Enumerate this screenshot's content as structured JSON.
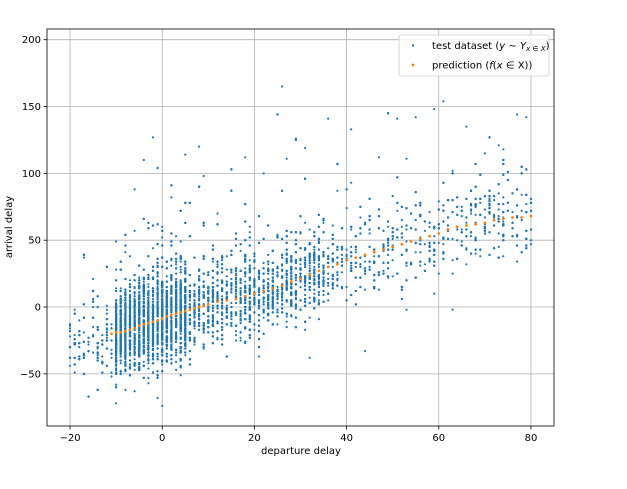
{
  "chart_data": {
    "type": "scatter",
    "xlabel": "departure delay",
    "ylabel": "arrival delay",
    "xlim": [
      -25,
      85
    ],
    "ylim": [
      -89,
      208
    ],
    "grid": true,
    "legend_placement": "top-right",
    "x_ticks": [
      -20,
      0,
      20,
      40,
      60,
      80
    ],
    "y_ticks": [
      -50,
      0,
      50,
      100,
      150,
      200
    ],
    "x_tick_labels": [
      "−20",
      "0",
      "20",
      "40",
      "60",
      "80"
    ],
    "y_tick_labels": [
      "−50",
      "0",
      "50",
      "100",
      "150",
      "200"
    ],
    "series": [
      {
        "name": "test dataset",
        "color": "#1f77b4",
        "marker": "point",
        "sample_points": [
          [
            -20,
            -18
          ],
          [
            -17,
            37
          ],
          [
            -15,
            12
          ],
          [
            -12,
            -2
          ],
          [
            -11,
            -52
          ],
          [
            -10,
            28
          ],
          [
            -8,
            -62
          ],
          [
            -6,
            88
          ],
          [
            -4,
            110
          ],
          [
            -2,
            127
          ],
          [
            -1,
            -68
          ],
          [
            0,
            60
          ],
          [
            0,
            -74
          ],
          [
            5,
            114
          ],
          [
            8,
            120
          ],
          [
            12,
            70
          ],
          [
            18,
            112
          ],
          [
            22,
            100
          ],
          [
            26,
            165
          ],
          [
            29,
            126
          ],
          [
            32,
            -38
          ],
          [
            36,
            141
          ],
          [
            38,
            87
          ],
          [
            41,
            133
          ],
          [
            44,
            -33
          ],
          [
            47,
            112
          ],
          [
            51,
            141
          ],
          [
            55,
            142
          ],
          [
            59,
            148
          ],
          [
            61,
            154
          ],
          [
            63,
            -2
          ],
          [
            66,
            135
          ],
          [
            70,
            115
          ],
          [
            74,
            118
          ],
          [
            77,
            144
          ],
          [
            79,
            142
          ]
        ],
        "summary": {
          "count_approx": 9000,
          "x_range": [
            -20,
            80
          ],
          "y_range": [
            -75,
            165
          ]
        }
      },
      {
        "name": "prediction",
        "color": "#ff7f0e",
        "marker": "point",
        "x": [
          -11,
          -10,
          -9,
          -8,
          -7,
          -6,
          -5,
          -4,
          -3,
          -2,
          -1,
          0,
          1,
          2,
          3,
          4,
          5,
          6,
          7,
          8,
          9,
          10,
          12,
          14,
          16,
          18,
          20,
          22,
          24,
          26,
          28,
          30,
          32,
          34,
          36,
          38,
          40,
          42,
          44,
          46,
          48,
          50,
          52,
          54,
          56,
          58,
          60,
          62,
          64,
          66,
          68,
          70,
          72,
          74,
          76,
          78,
          80
        ],
        "y": [
          -20,
          -19,
          -19,
          -18,
          -17,
          -16,
          -14,
          -13,
          -12,
          -11,
          -10,
          -9,
          -7,
          -6,
          -5,
          -4,
          -3,
          -2,
          -1,
          0,
          1,
          2,
          4,
          5,
          6,
          8,
          10,
          12,
          14,
          16,
          19,
          21,
          24,
          27,
          30,
          32,
          35,
          37,
          39,
          41,
          43,
          45,
          47,
          49,
          51,
          53,
          55,
          58,
          60,
          61,
          62,
          63,
          65,
          66,
          67,
          67,
          68
        ]
      }
    ]
  },
  "legend": {
    "entries": [
      {
        "prefix": "test dataset (",
        "italic": "y",
        "mid": " ∼ ",
        "italic2": "Y",
        "sub": "x ∈ X",
        "suffix": ")"
      },
      {
        "prefix": "prediction (",
        "italic": "f",
        "mid": "(",
        "italic2": "x",
        "sub": " ∈ X",
        "suffix": "))"
      }
    ]
  }
}
